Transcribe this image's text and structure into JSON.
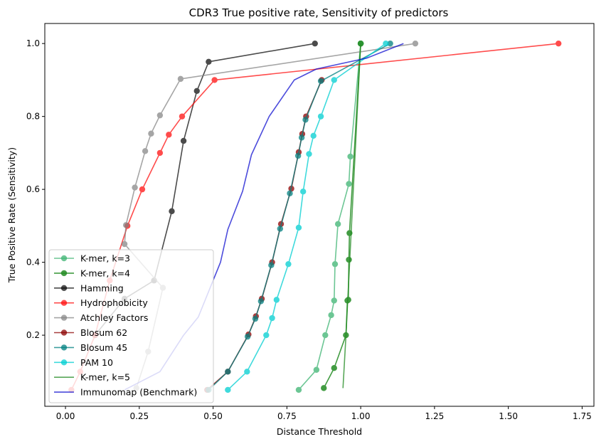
{
  "chart_data": {
    "type": "line",
    "title": "CDR3 True positive rate, Sensitivity of predictors",
    "xlabel": "Distance Threshold",
    "ylabel": "True Positive Rate (Sensitivity)",
    "xlim": [
      -0.07,
      1.79
    ],
    "ylim": [
      0.005,
      1.055
    ],
    "xticks": [
      0.0,
      0.25,
      0.5,
      0.75,
      1.0,
      1.25,
      1.5,
      1.75
    ],
    "xtick_labels": [
      "0.00",
      "0.25",
      "0.50",
      "0.75",
      "1.00",
      "1.25",
      "1.50",
      "1.75"
    ],
    "yticks": [
      0.2,
      0.4,
      0.6,
      0.8,
      1.0
    ],
    "ytick_labels": [
      "0.2",
      "0.4",
      "0.6",
      "0.8",
      "1.0"
    ],
    "grid": false,
    "legend_position": "lower-left",
    "series": [
      {
        "name": "K-mer, k=3",
        "color": "#3cb371",
        "alpha": 0.75,
        "marker": true,
        "x": [
          0.79,
          0.85,
          0.88,
          0.9,
          0.91,
          0.913,
          0.923,
          0.96,
          0.965,
          1.0,
          1.0,
          1.0
        ],
        "y": [
          0.05,
          0.105,
          0.2,
          0.255,
          0.295,
          0.395,
          0.505,
          0.615,
          0.69,
          1.0,
          1.0,
          1.0
        ]
      },
      {
        "name": "K-mer, k=4",
        "color": "#228b22",
        "alpha": 0.85,
        "marker": true,
        "x": [
          0.875,
          0.91,
          0.95,
          0.955,
          0.958,
          0.96,
          0.962,
          1.0,
          1.0,
          1.0
        ],
        "y": [
          0.055,
          0.11,
          0.2,
          0.295,
          0.297,
          0.407,
          0.48,
          1.0,
          1.0,
          1.0
        ]
      },
      {
        "name": "Hamming",
        "color": "#000000",
        "alpha": 0.7,
        "marker": true,
        "x": [
          0.1,
          0.2,
          0.3,
          0.36,
          0.4,
          0.445,
          0.485,
          0.845
        ],
        "y": [
          0.2,
          0.3,
          0.35,
          0.54,
          0.733,
          0.87,
          0.95,
          1.0
        ]
      },
      {
        "name": "Hydrophobicity",
        "color": "#ff0000",
        "alpha": 0.7,
        "marker": true,
        "x": [
          0.02,
          0.05,
          0.1,
          0.15,
          0.21,
          0.26,
          0.32,
          0.35,
          0.395,
          0.505,
          1.67
        ],
        "y": [
          0.05,
          0.1,
          0.2,
          0.35,
          0.5,
          0.6,
          0.7,
          0.75,
          0.8,
          0.9,
          1.0
        ]
      },
      {
        "name": "Atchley Factors",
        "color": "#808080",
        "alpha": 0.7,
        "marker": true,
        "x": [
          0.24,
          0.28,
          0.33,
          0.2,
          0.205,
          0.235,
          0.27,
          0.29,
          0.32,
          0.39,
          1.185
        ],
        "y": [
          0.055,
          0.155,
          0.33,
          0.45,
          0.502,
          0.605,
          0.705,
          0.753,
          0.803,
          0.903,
          1.0
        ]
      },
      {
        "name": "Blosum 62",
        "color": "#8b0000",
        "alpha": 0.75,
        "marker": true,
        "x": [
          0.48,
          0.55,
          0.62,
          0.645,
          0.665,
          0.7,
          0.73,
          0.765,
          0.79,
          0.802,
          0.815,
          0.868
        ],
        "y": [
          0.05,
          0.1,
          0.202,
          0.252,
          0.3,
          0.4,
          0.505,
          0.602,
          0.702,
          0.752,
          0.8,
          0.9
        ]
      },
      {
        "name": "Blosum 45",
        "color": "#008080",
        "alpha": 0.75,
        "marker": true,
        "x": [
          0.485,
          0.55,
          0.617,
          0.643,
          0.662,
          0.697,
          0.727,
          0.76,
          0.788,
          0.8,
          0.813,
          0.865,
          1.1
        ],
        "y": [
          0.05,
          0.1,
          0.196,
          0.245,
          0.293,
          0.392,
          0.492,
          0.589,
          0.692,
          0.742,
          0.791,
          0.897,
          1.0
        ]
      },
      {
        "name": "PAM 10",
        "color": "#00ced1",
        "alpha": 0.75,
        "marker": true,
        "x": [
          0.55,
          0.615,
          0.68,
          0.7,
          0.715,
          0.755,
          0.79,
          0.805,
          0.825,
          0.84,
          0.865,
          0.91,
          1.085
        ],
        "y": [
          0.05,
          0.1,
          0.2,
          0.247,
          0.297,
          0.395,
          0.495,
          0.594,
          0.697,
          0.747,
          0.8,
          0.9,
          1.0
        ]
      },
      {
        "name": "K-mer, k=5",
        "color": "#228b22",
        "alpha": 0.75,
        "marker": false,
        "x": [
          0.94,
          0.95,
          1.0
        ],
        "y": [
          0.055,
          0.2,
          1.0
        ]
      },
      {
        "name": "Immunomap (Benchmark)",
        "color": "#0000cd",
        "alpha": 0.7,
        "marker": false,
        "x": [
          0.2,
          0.32,
          0.4,
          0.45,
          0.5,
          0.525,
          0.55,
          0.6,
          0.63,
          0.69,
          0.775,
          0.85,
          1.02,
          1.145
        ],
        "y": [
          0.05,
          0.1,
          0.2,
          0.25,
          0.35,
          0.4,
          0.49,
          0.595,
          0.695,
          0.8,
          0.9,
          0.93,
          0.96,
          1.0
        ]
      }
    ]
  }
}
